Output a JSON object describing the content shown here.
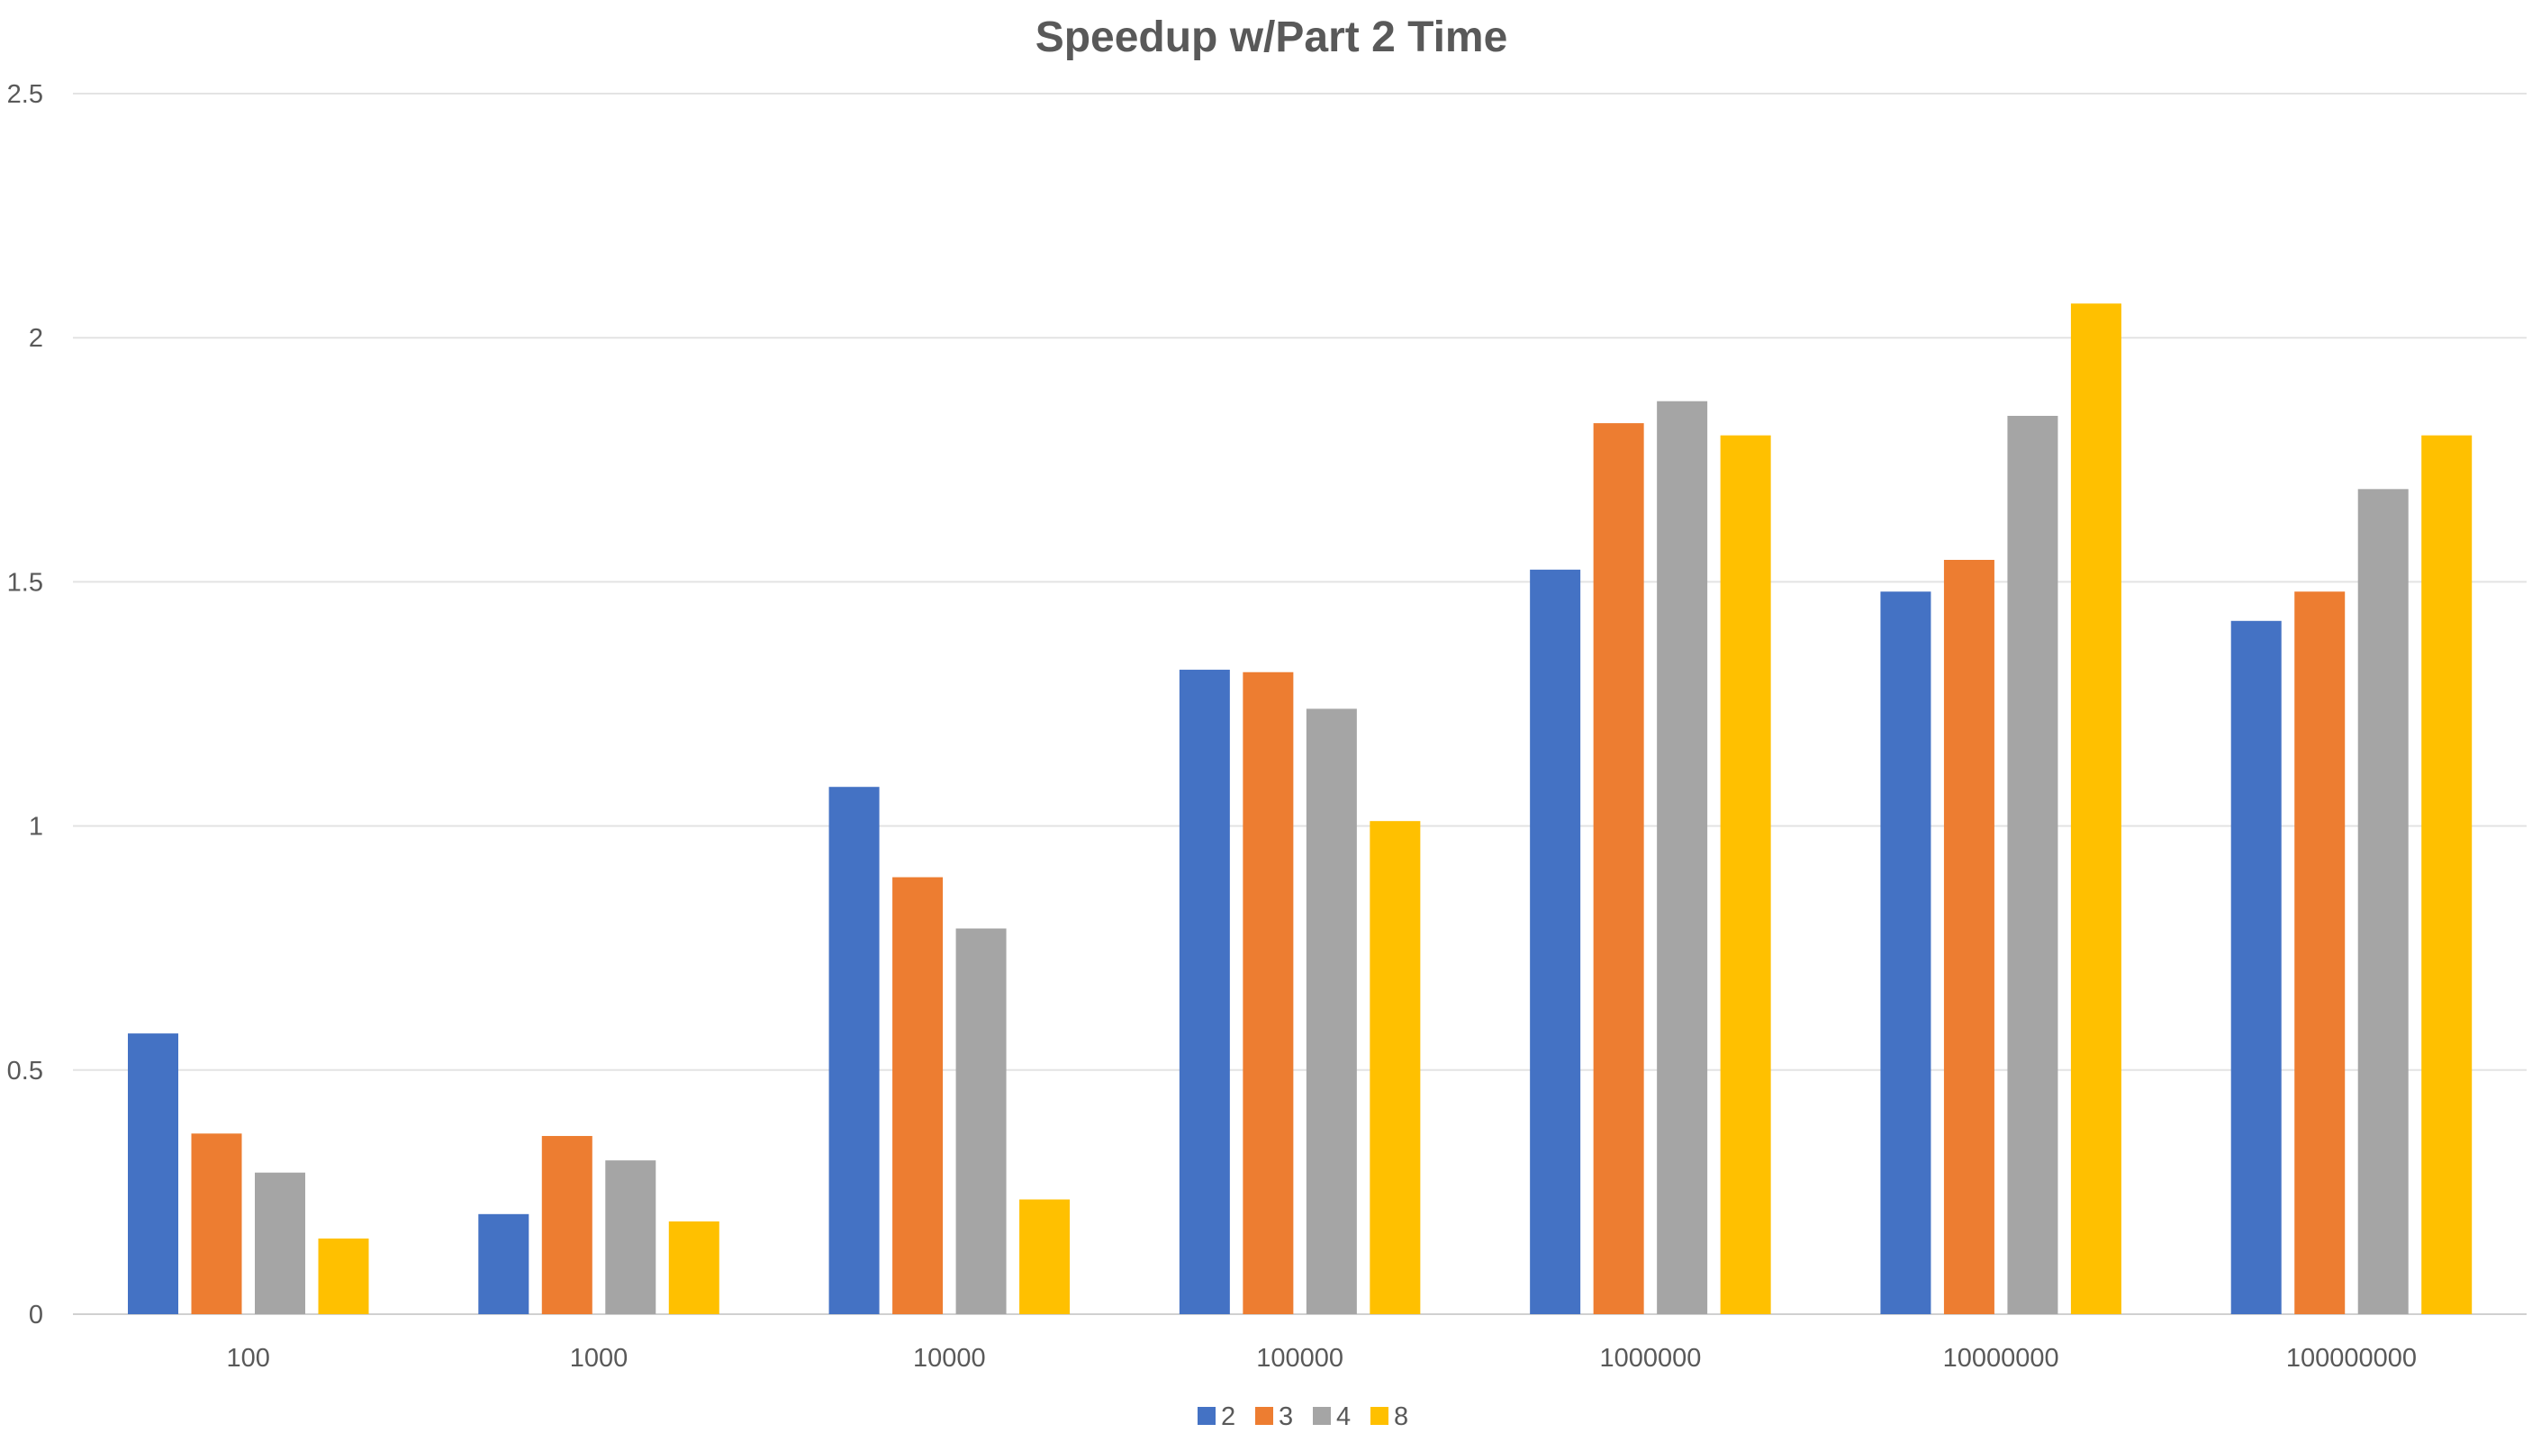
{
  "chart_data": {
    "type": "bar",
    "title": "Speedup w/Part 2 Time",
    "xlabel": "",
    "ylabel": "",
    "categories": [
      "100",
      "1000",
      "10000",
      "100000",
      "1000000",
      "10000000",
      "100000000"
    ],
    "ylim": [
      0,
      2.5
    ],
    "yticks": [
      0,
      0.5,
      1,
      1.5,
      2,
      2.5
    ],
    "ytick_labels": [
      "0",
      "0.5",
      "1",
      "1.5",
      "2",
      "2.5"
    ],
    "grid": true,
    "legend_position": "bottom",
    "series": [
      {
        "name": "2",
        "color": "#4472C4",
        "values": [
          0.575,
          0.205,
          1.08,
          1.32,
          1.525,
          1.48,
          1.42
        ]
      },
      {
        "name": "3",
        "color": "#ED7D31",
        "values": [
          0.37,
          0.365,
          0.895,
          1.315,
          1.825,
          1.545,
          1.48
        ]
      },
      {
        "name": "4",
        "color": "#A5A5A5",
        "values": [
          0.29,
          0.315,
          0.79,
          1.24,
          1.87,
          1.84,
          1.69
        ]
      },
      {
        "name": "8",
        "color": "#FFC000",
        "values": [
          0.155,
          0.19,
          0.235,
          1.01,
          1.8,
          2.07,
          1.8
        ]
      }
    ]
  }
}
